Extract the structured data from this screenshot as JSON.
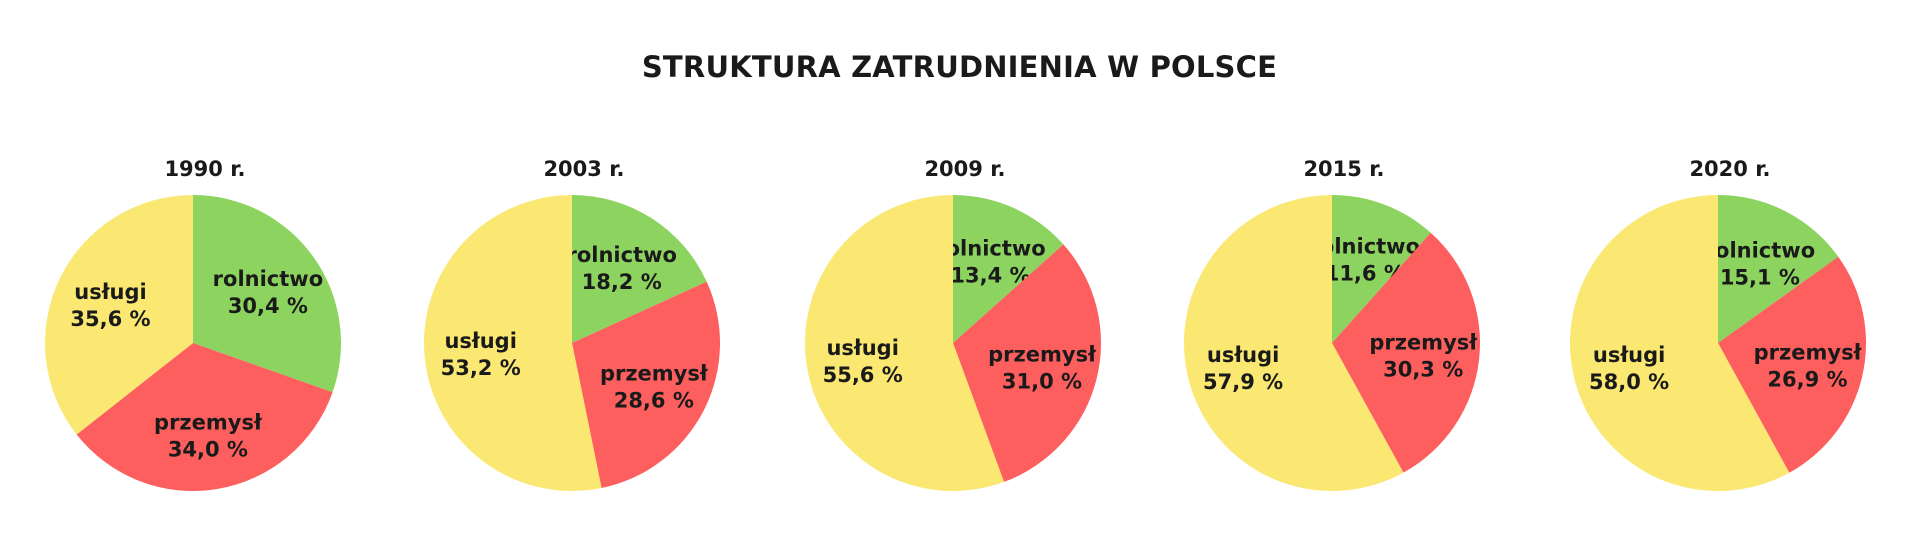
{
  "title": "STRUKTURA ZATRUDNIENIA W POLSCE",
  "colors": {
    "rolnictwo": "#8cd45f",
    "przemysl": "#fd5e5e",
    "uslugi": "#fae872"
  },
  "chart_data": [
    {
      "type": "pie",
      "title": "1990 r.",
      "slices": [
        {
          "name": "rolnictwo",
          "value": 30.4,
          "value_label": "30,4 %"
        },
        {
          "name": "przemysł",
          "value": 34.0,
          "value_label": "34,0 %"
        },
        {
          "name": "usługi",
          "value": 35.6,
          "value_label": "35,6 %"
        }
      ]
    },
    {
      "type": "pie",
      "title": "2003 r.",
      "slices": [
        {
          "name": "rolnictwo",
          "value": 18.2,
          "value_label": "18,2 %"
        },
        {
          "name": "przemysł",
          "value": 28.6,
          "value_label": "28,6 %"
        },
        {
          "name": "usługi",
          "value": 53.2,
          "value_label": "53,2 %"
        }
      ]
    },
    {
      "type": "pie",
      "title": "2009 r.",
      "slices": [
        {
          "name": "rolnictwo",
          "value": 13.4,
          "value_label": "13,4 %"
        },
        {
          "name": "przemysł",
          "value": 31.0,
          "value_label": "31,0 %"
        },
        {
          "name": "usługi",
          "value": 55.6,
          "value_label": "55,6 %"
        }
      ]
    },
    {
      "type": "pie",
      "title": "2015 r.",
      "slices": [
        {
          "name": "rolnictwo",
          "value": 11.6,
          "value_label": "11,6 %"
        },
        {
          "name": "przemysł",
          "value": 30.3,
          "value_label": "30,3 %"
        },
        {
          "name": "usługi",
          "value": 57.9,
          "value_label": "57,9 %"
        }
      ]
    },
    {
      "type": "pie",
      "title": "2020 r.",
      "slices": [
        {
          "name": "rolnictwo",
          "value": 15.1,
          "value_label": "15,1 %"
        },
        {
          "name": "przemysł",
          "value": 26.9,
          "value_label": "26,9 %"
        },
        {
          "name": "usługi",
          "value": 58.0,
          "value_label": "58,0 %"
        }
      ]
    }
  ]
}
